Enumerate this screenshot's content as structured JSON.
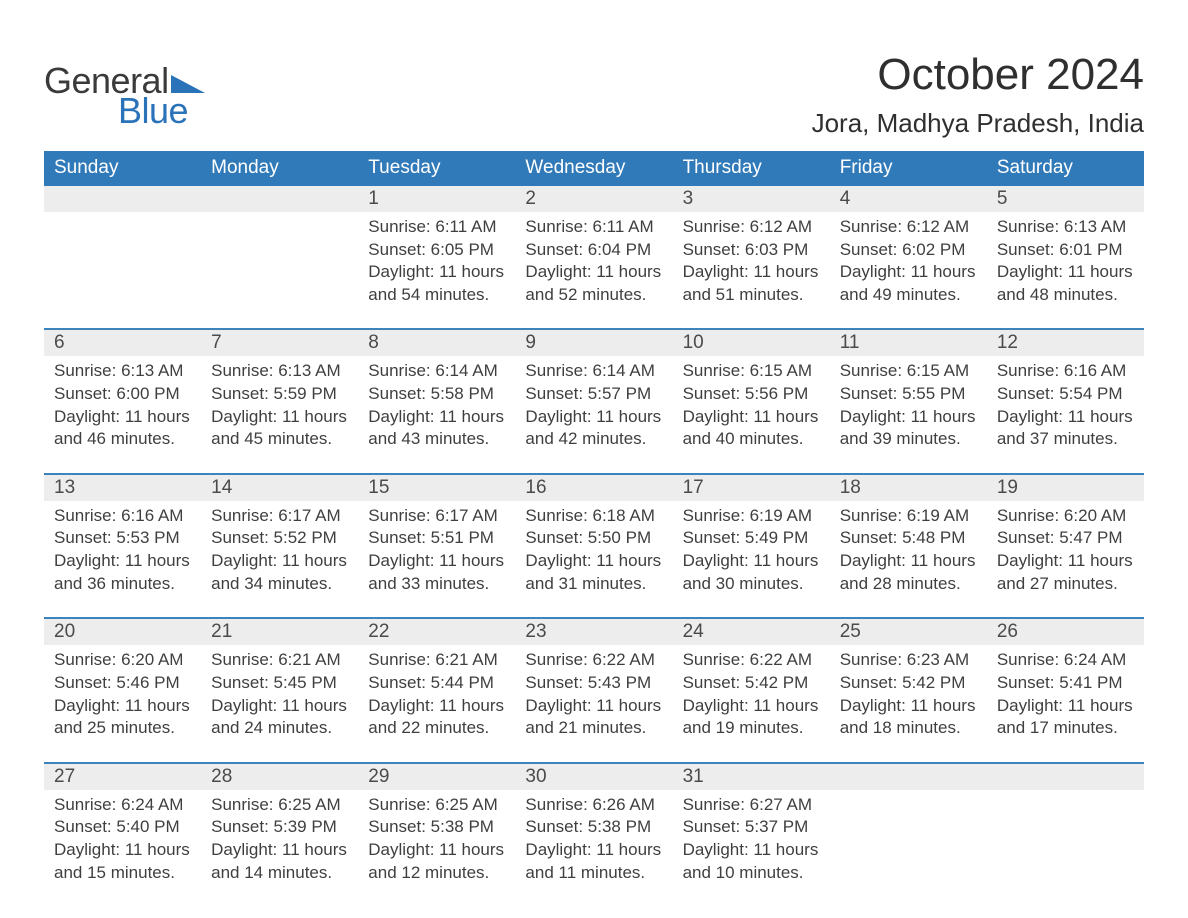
{
  "logo": {
    "word1": "General",
    "word2": "Blue",
    "word1_color": "#3a3a3a",
    "word2_color": "#2a73b8",
    "triangle_color": "#2a73b8"
  },
  "title": "October 2024",
  "location": "Jora, Madhya Pradesh, India",
  "colors": {
    "header_bg": "#317ab9",
    "header_text": "#ffffff",
    "week_divider": "#3d84bd",
    "daynum_bg": "#ededed",
    "page_bg": "#ffffff",
    "body_text": "#3f3f3f"
  },
  "typography": {
    "title_fontsize": 44,
    "location_fontsize": 26,
    "dow_fontsize": 19,
    "daynum_fontsize": 19,
    "body_fontsize": 17
  },
  "days_of_week": [
    "Sunday",
    "Monday",
    "Tuesday",
    "Wednesday",
    "Thursday",
    "Friday",
    "Saturday"
  ],
  "labels": {
    "sunrise": "Sunrise",
    "sunset": "Sunset",
    "daylight": "Daylight"
  },
  "weeks": [
    [
      null,
      null,
      {
        "n": "1",
        "sunrise": "6:11 AM",
        "sunset": "6:05 PM",
        "dayh": "11",
        "daym": "54"
      },
      {
        "n": "2",
        "sunrise": "6:11 AM",
        "sunset": "6:04 PM",
        "dayh": "11",
        "daym": "52"
      },
      {
        "n": "3",
        "sunrise": "6:12 AM",
        "sunset": "6:03 PM",
        "dayh": "11",
        "daym": "51"
      },
      {
        "n": "4",
        "sunrise": "6:12 AM",
        "sunset": "6:02 PM",
        "dayh": "11",
        "daym": "49"
      },
      {
        "n": "5",
        "sunrise": "6:13 AM",
        "sunset": "6:01 PM",
        "dayh": "11",
        "daym": "48"
      }
    ],
    [
      {
        "n": "6",
        "sunrise": "6:13 AM",
        "sunset": "6:00 PM",
        "dayh": "11",
        "daym": "46"
      },
      {
        "n": "7",
        "sunrise": "6:13 AM",
        "sunset": "5:59 PM",
        "dayh": "11",
        "daym": "45"
      },
      {
        "n": "8",
        "sunrise": "6:14 AM",
        "sunset": "5:58 PM",
        "dayh": "11",
        "daym": "43"
      },
      {
        "n": "9",
        "sunrise": "6:14 AM",
        "sunset": "5:57 PM",
        "dayh": "11",
        "daym": "42"
      },
      {
        "n": "10",
        "sunrise": "6:15 AM",
        "sunset": "5:56 PM",
        "dayh": "11",
        "daym": "40"
      },
      {
        "n": "11",
        "sunrise": "6:15 AM",
        "sunset": "5:55 PM",
        "dayh": "11",
        "daym": "39"
      },
      {
        "n": "12",
        "sunrise": "6:16 AM",
        "sunset": "5:54 PM",
        "dayh": "11",
        "daym": "37"
      }
    ],
    [
      {
        "n": "13",
        "sunrise": "6:16 AM",
        "sunset": "5:53 PM",
        "dayh": "11",
        "daym": "36"
      },
      {
        "n": "14",
        "sunrise": "6:17 AM",
        "sunset": "5:52 PM",
        "dayh": "11",
        "daym": "34"
      },
      {
        "n": "15",
        "sunrise": "6:17 AM",
        "sunset": "5:51 PM",
        "dayh": "11",
        "daym": "33"
      },
      {
        "n": "16",
        "sunrise": "6:18 AM",
        "sunset": "5:50 PM",
        "dayh": "11",
        "daym": "31"
      },
      {
        "n": "17",
        "sunrise": "6:19 AM",
        "sunset": "5:49 PM",
        "dayh": "11",
        "daym": "30"
      },
      {
        "n": "18",
        "sunrise": "6:19 AM",
        "sunset": "5:48 PM",
        "dayh": "11",
        "daym": "28"
      },
      {
        "n": "19",
        "sunrise": "6:20 AM",
        "sunset": "5:47 PM",
        "dayh": "11",
        "daym": "27"
      }
    ],
    [
      {
        "n": "20",
        "sunrise": "6:20 AM",
        "sunset": "5:46 PM",
        "dayh": "11",
        "daym": "25"
      },
      {
        "n": "21",
        "sunrise": "6:21 AM",
        "sunset": "5:45 PM",
        "dayh": "11",
        "daym": "24"
      },
      {
        "n": "22",
        "sunrise": "6:21 AM",
        "sunset": "5:44 PM",
        "dayh": "11",
        "daym": "22"
      },
      {
        "n": "23",
        "sunrise": "6:22 AM",
        "sunset": "5:43 PM",
        "dayh": "11",
        "daym": "21"
      },
      {
        "n": "24",
        "sunrise": "6:22 AM",
        "sunset": "5:42 PM",
        "dayh": "11",
        "daym": "19"
      },
      {
        "n": "25",
        "sunrise": "6:23 AM",
        "sunset": "5:42 PM",
        "dayh": "11",
        "daym": "18"
      },
      {
        "n": "26",
        "sunrise": "6:24 AM",
        "sunset": "5:41 PM",
        "dayh": "11",
        "daym": "17"
      }
    ],
    [
      {
        "n": "27",
        "sunrise": "6:24 AM",
        "sunset": "5:40 PM",
        "dayh": "11",
        "daym": "15"
      },
      {
        "n": "28",
        "sunrise": "6:25 AM",
        "sunset": "5:39 PM",
        "dayh": "11",
        "daym": "14"
      },
      {
        "n": "29",
        "sunrise": "6:25 AM",
        "sunset": "5:38 PM",
        "dayh": "11",
        "daym": "12"
      },
      {
        "n": "30",
        "sunrise": "6:26 AM",
        "sunset": "5:38 PM",
        "dayh": "11",
        "daym": "11"
      },
      {
        "n": "31",
        "sunrise": "6:27 AM",
        "sunset": "5:37 PM",
        "dayh": "11",
        "daym": "10"
      },
      null,
      null
    ]
  ]
}
